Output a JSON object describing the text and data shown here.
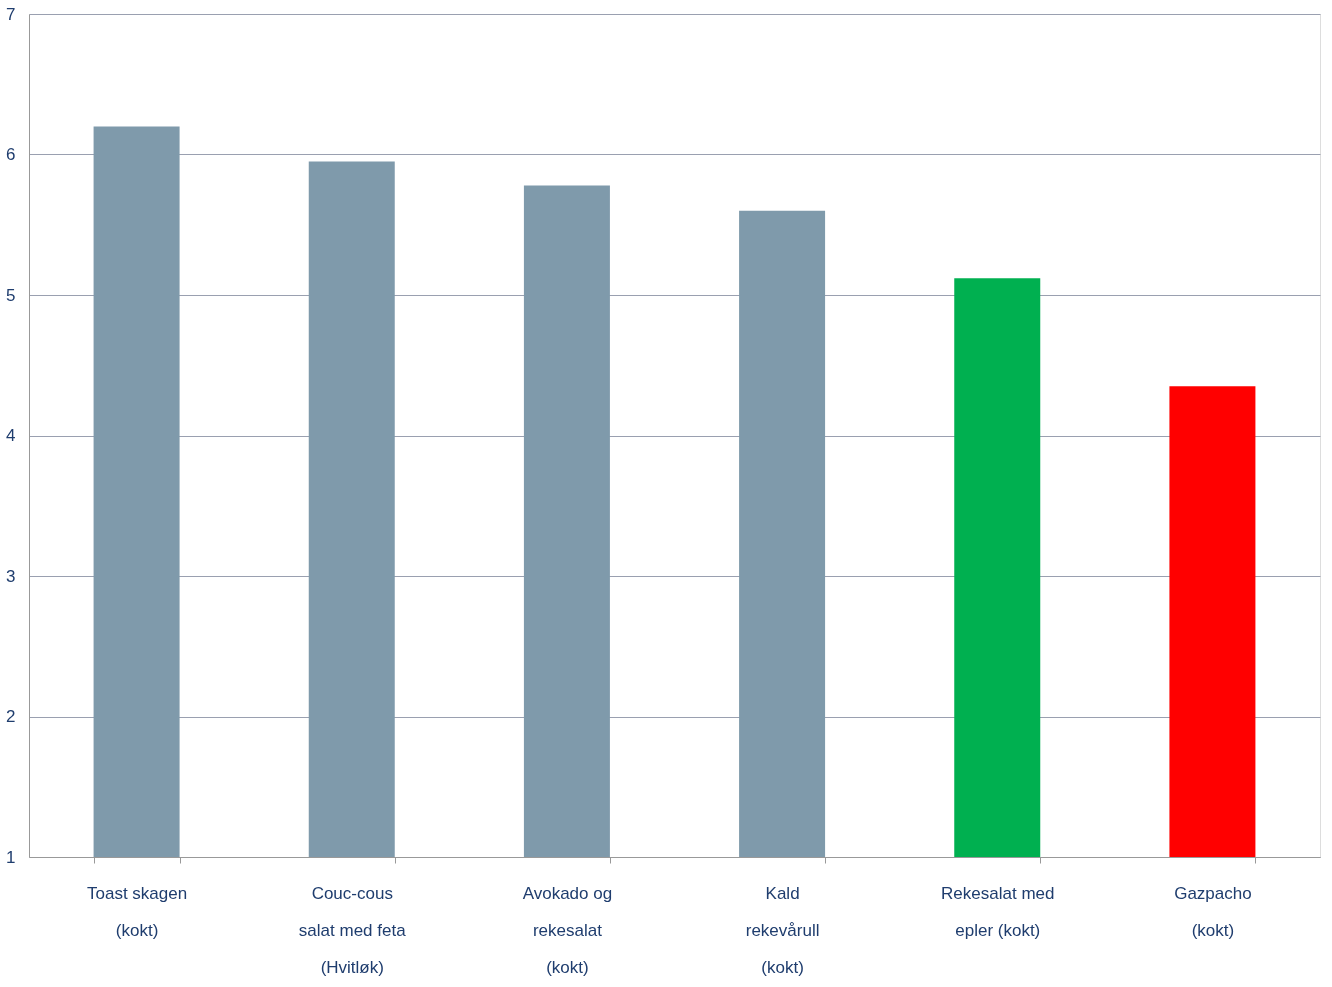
{
  "chart_data": {
    "type": "bar",
    "categories": [
      "Toast skagen (kokt)",
      "Couc-cous salat med feta (Hvitløk)",
      "Avokado og rekesalat (kokt)",
      "Kald rekevårull (kokt)",
      "Rekesalat med epler (kokt)",
      "Gazpacho (kokt)"
    ],
    "values": [
      6.2,
      5.95,
      5.78,
      5.6,
      5.12,
      4.35
    ],
    "colors": [
      "#7f9aab",
      "#7f9aab",
      "#7f9aab",
      "#7f9aab",
      "#00b050",
      "#ff0000"
    ],
    "ylim": [
      1,
      7
    ],
    "yticks": [
      1,
      2,
      3,
      4,
      5,
      6,
      7
    ],
    "grid": "y"
  }
}
